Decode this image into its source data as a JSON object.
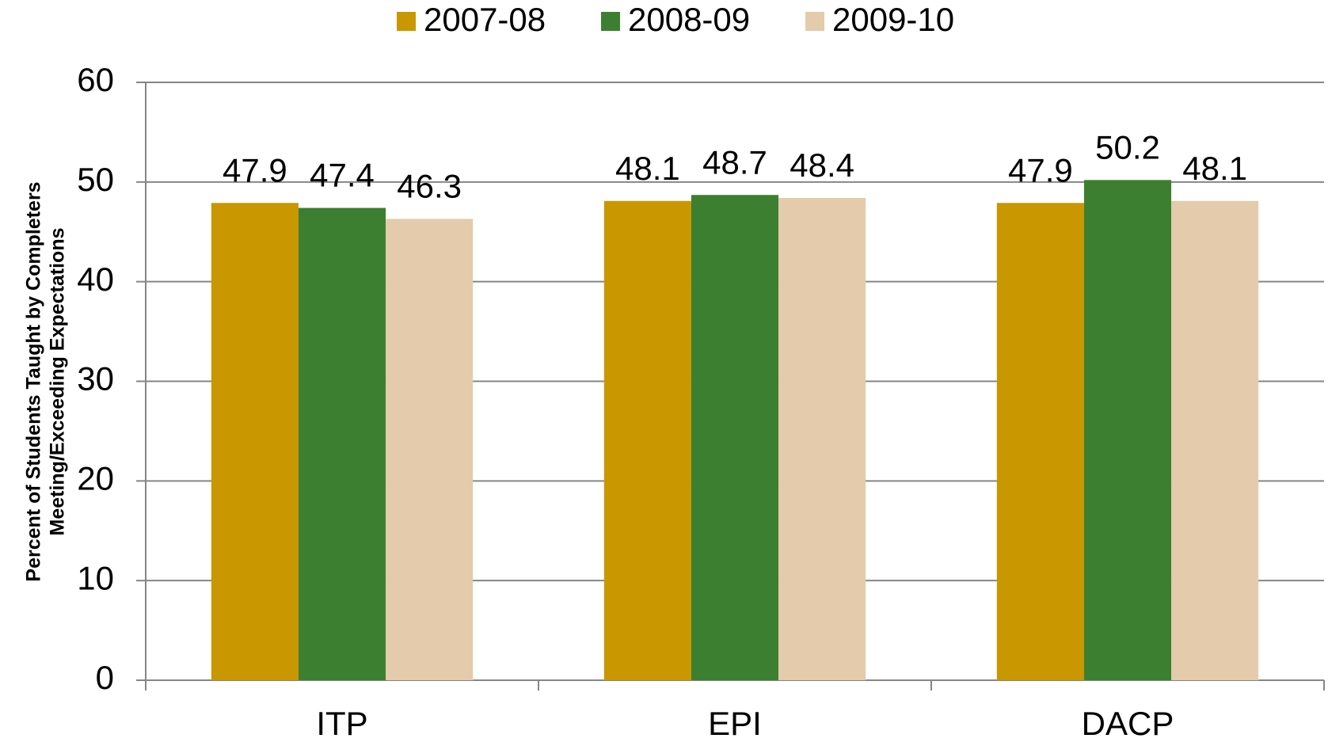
{
  "chart_data": {
    "type": "bar",
    "ylabel": [
      "Percent of Students Taught by Completers",
      "Meeting/Exceeding Expectations"
    ],
    "categories": [
      "ITP",
      "EPI",
      "DACP"
    ],
    "series": [
      {
        "name": "2007-08",
        "color": "#c99700",
        "values": [
          47.9,
          48.1,
          47.9
        ]
      },
      {
        "name": "2008-09",
        "color": "#3d7f30",
        "values": [
          47.4,
          48.7,
          50.2
        ]
      },
      {
        "name": "2009-10",
        "color": "#e3cbab",
        "values": [
          46.3,
          48.4,
          48.1
        ]
      }
    ],
    "ylim": [
      0,
      60
    ],
    "yticks": [
      0,
      10,
      20,
      30,
      40,
      50,
      60
    ],
    "grid": true,
    "legend": "top"
  }
}
